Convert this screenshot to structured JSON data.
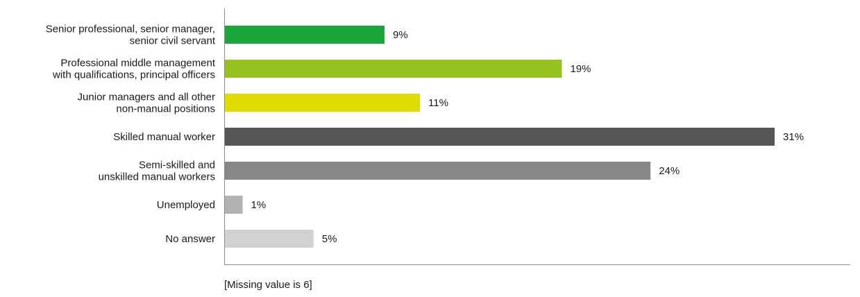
{
  "chart_data": {
    "type": "bar",
    "orientation": "horizontal",
    "categories": [
      [
        "Senior professional, senior manager,",
        "senior civil servant"
      ],
      [
        "Professional middle management",
        "with qualifications, principal officers"
      ],
      [
        "Junior managers and all other",
        "non-manual positions"
      ],
      [
        "Skilled manual worker"
      ],
      [
        "Semi-skilled and",
        "unskilled manual workers"
      ],
      [
        "Unemployed"
      ],
      [
        "No answer"
      ]
    ],
    "values": [
      9,
      19,
      11,
      31,
      24,
      1,
      5
    ],
    "value_labels": [
      "9%",
      "19%",
      "11%",
      "31%",
      "24%",
      "1%",
      "5%"
    ],
    "colors": [
      "#1aa638",
      "#95c11f",
      "#dedc00",
      "#575756",
      "#878787",
      "#b2b2b2",
      "#d2d2d2"
    ],
    "unit": "%",
    "grid": false,
    "legend": "none"
  },
  "note": "[Missing value is 6]"
}
